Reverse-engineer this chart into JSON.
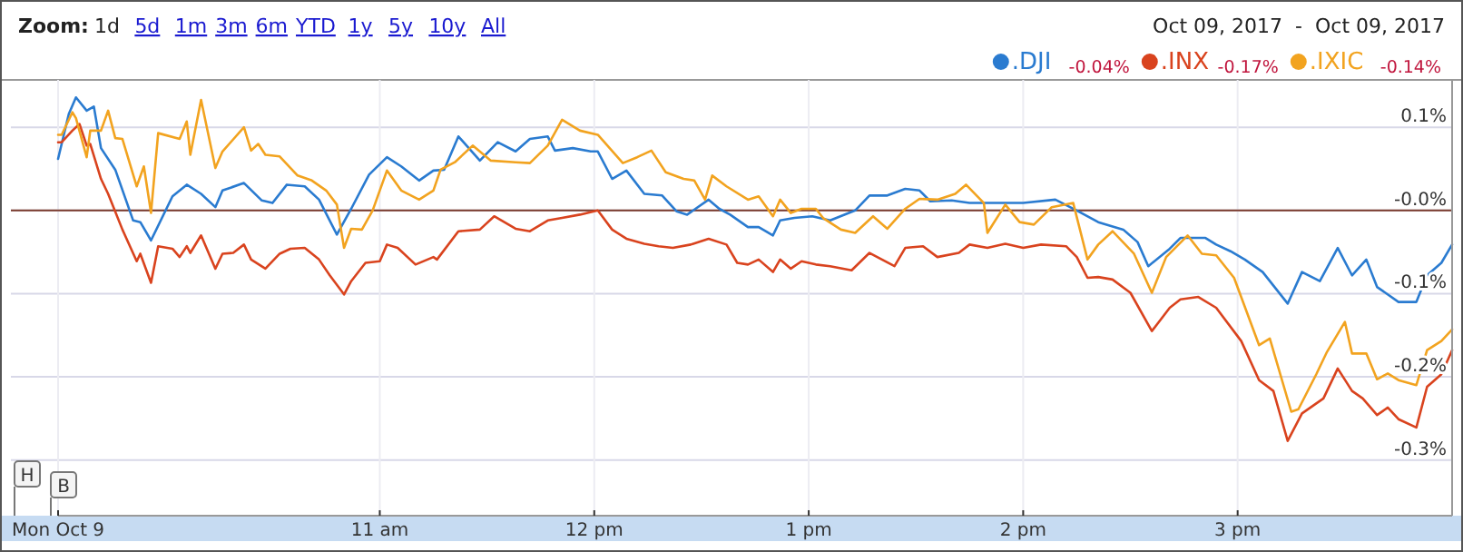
{
  "chart_data": {
    "type": "line",
    "xlim": [
      "2017-10-09T09:30",
      "2017-10-09T16:00"
    ],
    "ylim": [
      -0.367,
      0.157
    ],
    "xticks": [
      {
        "value": "2017-10-09T09:30",
        "label": "Mon Oct 9"
      },
      {
        "value": "2017-10-09T11:00",
        "label": "11 am"
      },
      {
        "value": "2017-10-09T12:00",
        "label": "12 pm"
      },
      {
        "value": "2017-10-09T13:00",
        "label": "1 pm"
      },
      {
        "value": "2017-10-09T14:00",
        "label": "2 pm"
      },
      {
        "value": "2017-10-09T15:00",
        "label": "3 pm"
      }
    ],
    "yticks": [
      {
        "value": 0.1,
        "label": "0.1%"
      },
      {
        "value": 0,
        "label": "-0.0%"
      },
      {
        "value": -0.1,
        "label": "-0.1%"
      },
      {
        "value": -0.2,
        "label": "-0.2%"
      },
      {
        "value": -0.3,
        "label": "-0.3%"
      }
    ],
    "grid": true,
    "legend": "top right",
    "ref_lines": [
      {
        "axis": "y",
        "value": 0,
        "color": "#7a3a2c"
      }
    ],
    "annotations": [
      "Oct 09, 2017  -  Oct 09, 2017",
      "-0.04%",
      "-0.17%",
      "-0.14%",
      "Zoom:",
      "1d",
      "5d",
      "1m",
      "3m",
      "6m",
      "YTD",
      "1y",
      "5y",
      "10y",
      "All",
      "H",
      "B"
    ],
    "series": [
      {
        "name": ".DJI",
        "color": "#2a7bd0",
        "x": [
          "2017-10-09T09:30",
          "2017-10-09T09:33",
          "2017-10-09T09:35",
          "2017-10-09T09:38",
          "2017-10-09T09:40",
          "2017-10-09T09:42",
          "2017-10-09T09:46",
          "2017-10-09T09:51",
          "2017-10-09T09:53",
          "2017-10-09T09:56",
          "2017-10-09T10:02",
          "2017-10-09T10:06",
          "2017-10-09T10:10",
          "2017-10-09T10:14",
          "2017-10-09T10:16",
          "2017-10-09T10:22",
          "2017-10-09T10:27",
          "2017-10-09T10:30",
          "2017-10-09T10:34",
          "2017-10-09T10:39",
          "2017-10-09T10:43",
          "2017-10-09T10:48",
          "2017-10-09T10:52",
          "2017-10-09T10:57",
          "2017-10-09T11:02",
          "2017-10-09T11:06",
          "2017-10-09T11:11",
          "2017-10-09T11:15",
          "2017-10-09T11:18",
          "2017-10-09T11:22",
          "2017-10-09T11:28",
          "2017-10-09T11:33",
          "2017-10-09T11:38",
          "2017-10-09T11:42",
          "2017-10-09T11:47",
          "2017-10-09T11:49",
          "2017-10-09T11:54",
          "2017-10-09T11:59",
          "2017-10-09T12:01",
          "2017-10-09T12:05",
          "2017-10-09T12:09",
          "2017-10-09T12:14",
          "2017-10-09T12:19",
          "2017-10-09T12:23",
          "2017-10-09T12:26",
          "2017-10-09T12:32",
          "2017-10-09T12:35",
          "2017-10-09T12:38",
          "2017-10-09T12:43",
          "2017-10-09T12:46",
          "2017-10-09T12:50",
          "2017-10-09T12:52",
          "2017-10-09T12:56",
          "2017-10-09T13:01",
          "2017-10-09T13:06",
          "2017-10-09T13:13",
          "2017-10-09T13:17",
          "2017-10-09T13:22",
          "2017-10-09T13:27",
          "2017-10-09T13:31",
          "2017-10-09T13:34",
          "2017-10-09T13:40",
          "2017-10-09T13:45",
          "2017-10-09T13:52",
          "2017-10-09T14:00",
          "2017-10-09T14:09",
          "2017-10-09T14:15",
          "2017-10-09T14:21",
          "2017-10-09T14:28",
          "2017-10-09T14:32",
          "2017-10-09T14:35",
          "2017-10-09T14:41",
          "2017-10-09T14:44",
          "2017-10-09T14:51",
          "2017-10-09T14:54",
          "2017-10-09T14:58",
          "2017-10-09T15:02",
          "2017-10-09T15:07",
          "2017-10-09T15:14",
          "2017-10-09T15:18",
          "2017-10-09T15:23",
          "2017-10-09T15:28",
          "2017-10-09T15:32",
          "2017-10-09T15:36",
          "2017-10-09T15:39",
          "2017-10-09T15:45",
          "2017-10-09T15:50",
          "2017-10-09T15:53",
          "2017-10-09T15:57",
          "2017-10-09T16:00"
        ],
        "values": [
          0.062,
          0.116,
          0.136,
          0.12,
          0.125,
          0.075,
          0.049,
          -0.012,
          -0.014,
          -0.036,
          0.017,
          0.031,
          0.02,
          0.004,
          0.024,
          0.033,
          0.012,
          0.009,
          0.031,
          0.029,
          0.013,
          -0.029,
          0.002,
          0.043,
          0.064,
          0.053,
          0.036,
          0.048,
          0.049,
          0.089,
          0.06,
          0.082,
          0.071,
          0.086,
          0.089,
          0.072,
          0.075,
          0.071,
          0.071,
          0.038,
          0.048,
          0.02,
          0.018,
          -0.001,
          -0.005,
          0.013,
          0.002,
          -0.005,
          -0.02,
          -0.02,
          -0.03,
          -0.012,
          -0.009,
          -0.007,
          -0.012,
          0,
          0.018,
          0.018,
          0.026,
          0.024,
          0.011,
          0.012,
          0.009,
          0.009,
          0.009,
          0.013,
          0,
          -0.014,
          -0.023,
          -0.038,
          -0.067,
          -0.046,
          -0.033,
          -0.033,
          -0.041,
          -0.049,
          -0.059,
          -0.074,
          -0.112,
          -0.074,
          -0.085,
          -0.045,
          -0.078,
          -0.059,
          -0.092,
          -0.11,
          -0.11,
          -0.078,
          -0.063,
          -0.041
        ]
      },
      {
        "name": ".INX",
        "color": "#d9431e",
        "x": [
          "2017-10-09T09:30",
          "2017-10-09T09:31",
          "2017-10-09T09:34",
          "2017-10-09T09:36",
          "2017-10-09T09:38",
          "2017-10-09T09:39",
          "2017-10-09T09:42",
          "2017-10-09T09:44",
          "2017-10-09T09:48",
          "2017-10-09T09:52",
          "2017-10-09T09:53",
          "2017-10-09T09:56",
          "2017-10-09T09:58",
          "2017-10-09T10:02",
          "2017-10-09T10:04",
          "2017-10-09T10:06",
          "2017-10-09T10:07",
          "2017-10-09T10:10",
          "2017-10-09T10:14",
          "2017-10-09T10:16",
          "2017-10-09T10:19",
          "2017-10-09T10:22",
          "2017-10-09T10:24",
          "2017-10-09T10:28",
          "2017-10-09T10:32",
          "2017-10-09T10:35",
          "2017-10-09T10:39",
          "2017-10-09T10:43",
          "2017-10-09T10:46",
          "2017-10-09T10:50",
          "2017-10-09T10:52",
          "2017-10-09T10:56",
          "2017-10-09T11:00",
          "2017-10-09T11:02",
          "2017-10-09T11:05",
          "2017-10-09T11:10",
          "2017-10-09T11:15",
          "2017-10-09T11:16",
          "2017-10-09T11:22",
          "2017-10-09T11:28",
          "2017-10-09T11:32",
          "2017-10-09T11:38",
          "2017-10-09T11:42",
          "2017-10-09T11:47",
          "2017-10-09T11:51",
          "2017-10-09T11:56",
          "2017-10-09T12:01",
          "2017-10-09T12:05",
          "2017-10-09T12:09",
          "2017-10-09T12:14",
          "2017-10-09T12:18",
          "2017-10-09T12:22",
          "2017-10-09T12:27",
          "2017-10-09T12:32",
          "2017-10-09T12:37",
          "2017-10-09T12:40",
          "2017-10-09T12:43",
          "2017-10-09T12:46",
          "2017-10-09T12:50",
          "2017-10-09T12:52",
          "2017-10-09T12:55",
          "2017-10-09T12:58",
          "2017-10-09T13:02",
          "2017-10-09T13:06",
          "2017-10-09T13:12",
          "2017-10-09T13:17",
          "2017-10-09T13:24",
          "2017-10-09T13:27",
          "2017-10-09T13:32",
          "2017-10-09T13:36",
          "2017-10-09T13:42",
          "2017-10-09T13:45",
          "2017-10-09T13:50",
          "2017-10-09T13:55",
          "2017-10-09T14:00",
          "2017-10-09T14:05",
          "2017-10-09T14:12",
          "2017-10-09T14:15",
          "2017-10-09T14:18",
          "2017-10-09T14:21",
          "2017-10-09T14:25",
          "2017-10-09T14:30",
          "2017-10-09T14:36",
          "2017-10-09T14:41",
          "2017-10-09T14:44",
          "2017-10-09T14:49",
          "2017-10-09T14:54",
          "2017-10-09T15:01",
          "2017-10-09T15:06",
          "2017-10-09T15:10",
          "2017-10-09T15:14",
          "2017-10-09T15:18",
          "2017-10-09T15:24",
          "2017-10-09T15:28",
          "2017-10-09T15:32",
          "2017-10-09T15:35",
          "2017-10-09T15:39",
          "2017-10-09T15:42",
          "2017-10-09T15:45",
          "2017-10-09T15:50",
          "2017-10-09T15:53",
          "2017-10-09T15:57",
          "2017-10-09T16:00"
        ],
        "values": [
          0.082,
          0.082,
          0.096,
          0.104,
          0.078,
          0.08,
          0.038,
          0.02,
          -0.023,
          -0.061,
          -0.052,
          -0.087,
          -0.043,
          -0.046,
          -0.056,
          -0.043,
          -0.051,
          -0.03,
          -0.07,
          -0.052,
          -0.051,
          -0.041,
          -0.059,
          -0.07,
          -0.052,
          -0.046,
          -0.045,
          -0.059,
          -0.078,
          -0.101,
          -0.085,
          -0.063,
          -0.061,
          -0.041,
          -0.045,
          -0.065,
          -0.056,
          -0.059,
          -0.025,
          -0.023,
          -0.007,
          -0.022,
          -0.025,
          -0.012,
          -0.009,
          -0.005,
          0,
          -0.023,
          -0.034,
          -0.04,
          -0.043,
          -0.045,
          -0.041,
          -0.034,
          -0.041,
          -0.063,
          -0.065,
          -0.059,
          -0.074,
          -0.059,
          -0.07,
          -0.061,
          -0.065,
          -0.067,
          -0.072,
          -0.051,
          -0.067,
          -0.045,
          -0.043,
          -0.056,
          -0.051,
          -0.041,
          -0.045,
          -0.04,
          -0.045,
          -0.041,
          -0.043,
          -0.056,
          -0.081,
          -0.08,
          -0.083,
          -0.099,
          -0.145,
          -0.117,
          -0.107,
          -0.104,
          -0.117,
          -0.157,
          -0.204,
          -0.217,
          -0.277,
          -0.244,
          -0.226,
          -0.19,
          -0.217,
          -0.226,
          -0.246,
          -0.237,
          -0.251,
          -0.261,
          -0.212,
          -0.197,
          -0.168
        ]
      },
      {
        "name": ".IXIC",
        "color": "#f2a31f",
        "x": [
          "2017-10-09T09:30",
          "2017-10-09T09:31",
          "2017-10-09T09:34",
          "2017-10-09T09:35",
          "2017-10-09T09:38",
          "2017-10-09T09:39",
          "2017-10-09T09:42",
          "2017-10-09T09:44",
          "2017-10-09T09:46",
          "2017-10-09T09:48",
          "2017-10-09T09:52",
          "2017-10-09T09:54",
          "2017-10-09T09:56",
          "2017-10-09T09:58",
          "2017-10-09T10:04",
          "2017-10-09T10:06",
          "2017-10-09T10:07",
          "2017-10-09T10:10",
          "2017-10-09T10:14",
          "2017-10-09T10:16",
          "2017-10-09T10:22",
          "2017-10-09T10:24",
          "2017-10-09T10:26",
          "2017-10-09T10:28",
          "2017-10-09T10:32",
          "2017-10-09T10:37",
          "2017-10-09T10:41",
          "2017-10-09T10:45",
          "2017-10-09T10:48",
          "2017-10-09T10:50",
          "2017-10-09T10:52",
          "2017-10-09T10:55",
          "2017-10-09T10:58",
          "2017-10-09T11:02",
          "2017-10-09T11:06",
          "2017-10-09T11:11",
          "2017-10-09T11:15",
          "2017-10-09T11:17",
          "2017-10-09T11:21",
          "2017-10-09T11:26",
          "2017-10-09T11:31",
          "2017-10-09T11:38",
          "2017-10-09T11:42",
          "2017-10-09T11:47",
          "2017-10-09T11:51",
          "2017-10-09T11:56",
          "2017-10-09T12:01",
          "2017-10-09T12:08",
          "2017-10-09T12:12",
          "2017-10-09T12:16",
          "2017-10-09T12:20",
          "2017-10-09T12:25",
          "2017-10-09T12:28",
          "2017-10-09T12:31",
          "2017-10-09T12:33",
          "2017-10-09T12:37",
          "2017-10-09T12:43",
          "2017-10-09T12:46",
          "2017-10-09T12:50",
          "2017-10-09T12:52",
          "2017-10-09T12:55",
          "2017-10-09T12:58",
          "2017-10-09T13:02",
          "2017-10-09T13:04",
          "2017-10-09T13:09",
          "2017-10-09T13:13",
          "2017-10-09T13:18",
          "2017-10-09T13:22",
          "2017-10-09T13:27",
          "2017-10-09T13:31",
          "2017-10-09T13:36",
          "2017-10-09T13:41",
          "2017-10-09T13:44",
          "2017-10-09T13:49",
          "2017-10-09T13:50",
          "2017-10-09T13:55",
          "2017-10-09T13:59",
          "2017-10-09T14:03",
          "2017-10-09T14:08",
          "2017-10-09T14:14",
          "2017-10-09T14:18",
          "2017-10-09T14:21",
          "2017-10-09T14:25",
          "2017-10-09T14:31",
          "2017-10-09T14:36",
          "2017-10-09T14:40",
          "2017-10-09T14:46",
          "2017-10-09T14:50",
          "2017-10-09T14:54",
          "2017-10-09T14:59",
          "2017-10-09T15:06",
          "2017-10-09T15:09",
          "2017-10-09T15:15",
          "2017-10-09T15:17",
          "2017-10-09T15:22",
          "2017-10-09T15:25",
          "2017-10-09T15:30",
          "2017-10-09T15:32",
          "2017-10-09T15:36",
          "2017-10-09T15:39",
          "2017-10-09T15:42",
          "2017-10-09T15:45",
          "2017-10-09T15:50",
          "2017-10-09T15:53",
          "2017-10-09T15:57",
          "2017-10-09T16:00"
        ],
        "values": [
          0.091,
          0.091,
          0.118,
          0.111,
          0.064,
          0.096,
          0.096,
          0.12,
          0.087,
          0.086,
          0.029,
          0.053,
          -0.003,
          0.093,
          0.086,
          0.107,
          0.067,
          0.133,
          0.051,
          0.071,
          0.1,
          0.072,
          0.08,
          0.067,
          0.065,
          0.042,
          0.036,
          0.024,
          0.007,
          -0.045,
          -0.022,
          -0.023,
          0,
          0.048,
          0.024,
          0.013,
          0.024,
          0.049,
          0.058,
          0.078,
          0.06,
          0.058,
          0.057,
          0.078,
          0.109,
          0.096,
          0.091,
          0.057,
          0.064,
          0.072,
          0.046,
          0.038,
          0.036,
          0.013,
          0.042,
          0.029,
          0.013,
          0.017,
          -0.007,
          0.013,
          -0.003,
          0.002,
          0.002,
          -0.009,
          -0.023,
          -0.027,
          -0.007,
          -0.022,
          0.002,
          0.014,
          0.013,
          0.02,
          0.031,
          0.009,
          -0.027,
          0.007,
          -0.014,
          -0.017,
          0.004,
          0.009,
          -0.059,
          -0.041,
          -0.025,
          -0.052,
          -0.099,
          -0.056,
          -0.03,
          -0.052,
          -0.054,
          -0.081,
          -0.162,
          -0.154,
          -0.242,
          -0.239,
          -0.197,
          -0.17,
          -0.134,
          -0.172,
          -0.172,
          -0.203,
          -0.196,
          -0.204,
          -0.21,
          -0.168,
          -0.157,
          -0.143
        ]
      }
    ]
  }
}
